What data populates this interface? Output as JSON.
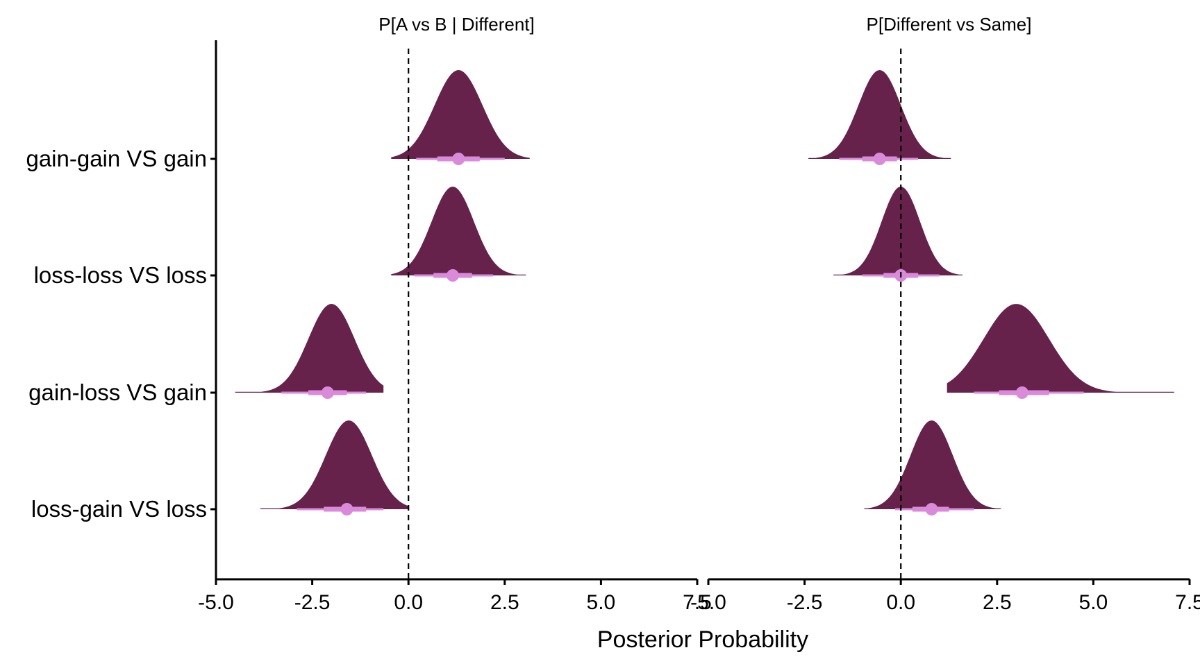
{
  "chart_data": {
    "type": "density",
    "xlabel": "Posterior Probability",
    "ylabel": "",
    "x_ticks": [
      -5.0,
      -2.5,
      0.0,
      2.5,
      5.0,
      7.5
    ],
    "x_tick_labels": [
      "-5.0",
      "-2.5",
      "0.0",
      "2.5",
      "5.0",
      "7.5"
    ],
    "xlim": [
      -5.0,
      7.5
    ],
    "reference_line": 0,
    "categories": [
      "gain-gain VS gain",
      "loss-loss VS loss",
      "gain-loss VS gain",
      "loss-gain VS loss"
    ],
    "colors": {
      "density": "#66224a",
      "interval": "#d98ad9",
      "axis": "#000000"
    },
    "panels": [
      {
        "title": "P[A vs B | Different]",
        "series": [
          {
            "category": "gain-gain VS gain",
            "median": 1.3,
            "interval_66": [
              0.75,
              1.85
            ],
            "interval_95": [
              0.2,
              2.5
            ],
            "range": [
              -0.45,
              3.15
            ],
            "mode": 1.3,
            "sd": 0.62
          },
          {
            "category": "loss-loss VS loss",
            "median": 1.15,
            "interval_66": [
              0.65,
              1.65
            ],
            "interval_95": [
              0.15,
              2.2
            ],
            "range": [
              -0.45,
              3.05
            ],
            "mode": 1.15,
            "sd": 0.55
          },
          {
            "category": "gain-loss VS gain",
            "median": -2.1,
            "interval_66": [
              -2.6,
              -1.6
            ],
            "interval_95": [
              -3.3,
              -1.1
            ],
            "range": [
              -4.5,
              -0.65
            ],
            "mode": -2.0,
            "sd": 0.6
          },
          {
            "category": "loss-gain VS loss",
            "median": -1.6,
            "interval_66": [
              -2.2,
              -1.1
            ],
            "interval_95": [
              -2.9,
              -0.65
            ],
            "range": [
              -3.85,
              0.0
            ],
            "mode": -1.55,
            "sd": 0.6
          }
        ]
      },
      {
        "title": "P[Different vs Same]",
        "series": [
          {
            "category": "gain-gain VS gain",
            "median": -0.55,
            "interval_66": [
              -1.0,
              -0.1
            ],
            "interval_95": [
              -1.6,
              0.45
            ],
            "range": [
              -2.4,
              1.3
            ],
            "mode": -0.55,
            "sd": 0.55
          },
          {
            "category": "loss-loss VS loss",
            "median": 0.0,
            "interval_66": [
              -0.45,
              0.45
            ],
            "interval_95": [
              -1.0,
              1.0
            ],
            "range": [
              -1.75,
              1.6
            ],
            "mode": 0.0,
            "sd": 0.5
          },
          {
            "category": "gain-loss VS gain",
            "median": 3.15,
            "interval_66": [
              2.55,
              3.85
            ],
            "interval_95": [
              1.9,
              4.75
            ],
            "range": [
              1.2,
              7.1
            ],
            "mode": 3.0,
            "sd": 0.85
          },
          {
            "category": "loss-gain VS loss",
            "median": 0.8,
            "interval_66": [
              0.3,
              1.25
            ],
            "interval_95": [
              -0.15,
              1.9
            ],
            "range": [
              -0.95,
              2.6
            ],
            "mode": 0.8,
            "sd": 0.55
          }
        ]
      }
    ]
  }
}
